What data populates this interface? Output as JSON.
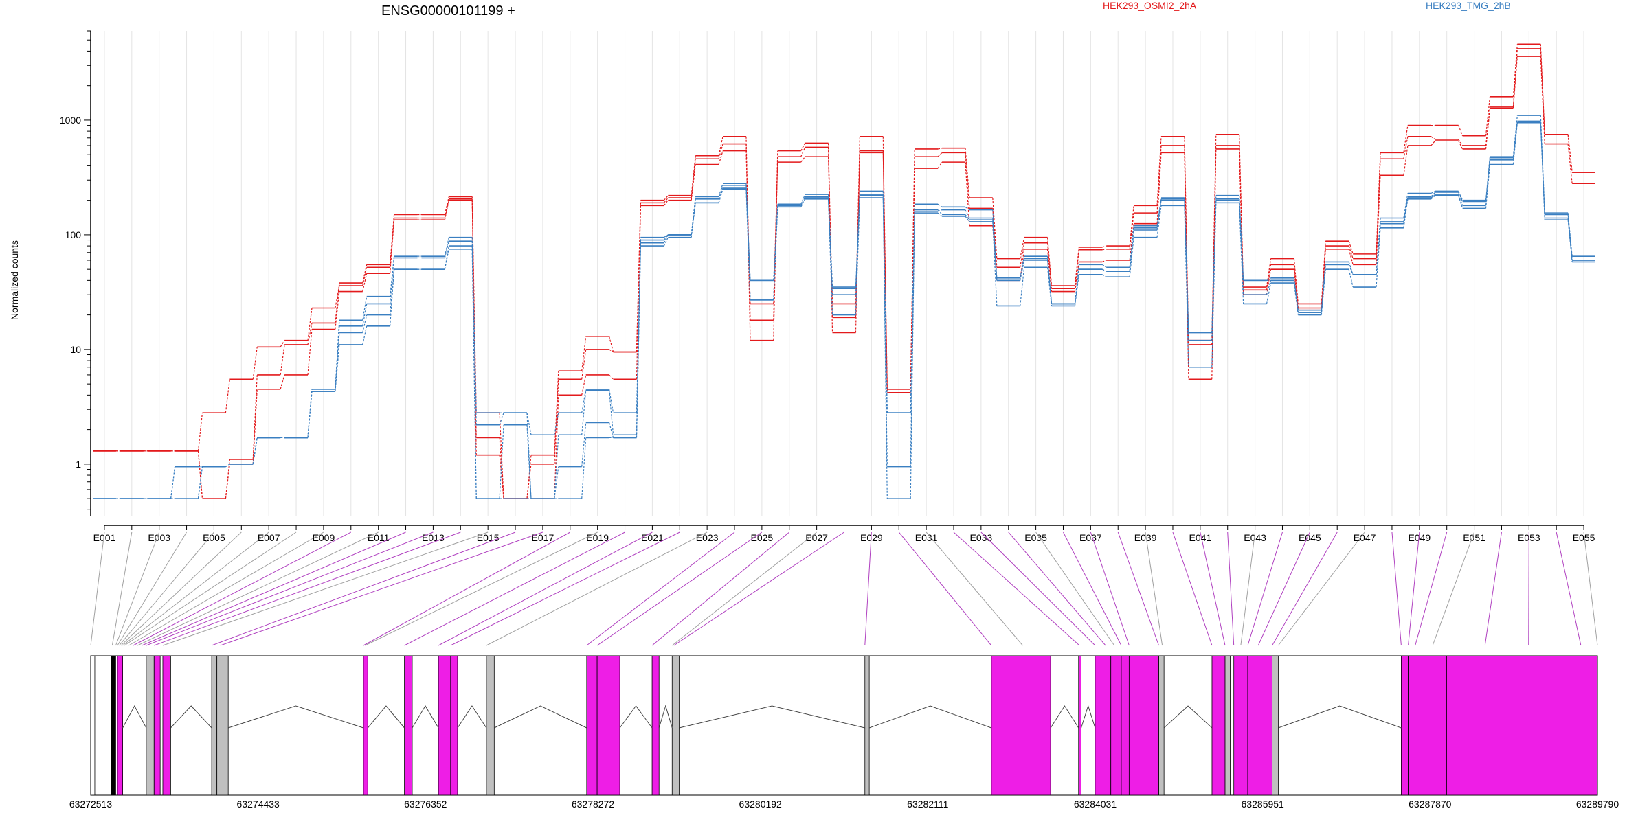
{
  "title": "ENSG00000101199 +",
  "colors": {
    "groupA": "#e31a1c",
    "groupB": "#3a7fc1",
    "exonCoding": "#ee1ee6",
    "exonNonCoding": "#c0c0c0",
    "link": "#a0a0a0",
    "linkColored": "#b040c0"
  },
  "chart_data": [
    {
      "type": "line",
      "title": "ENSG00000101199 +",
      "ylabel": "Normalized counts",
      "yscale": "log",
      "ylim": [
        0.35,
        6000
      ],
      "yticks": [
        1,
        10,
        100,
        1000
      ],
      "ytick_labels": [
        "1",
        "10",
        "100",
        "1000"
      ],
      "grid": "vertical",
      "legend": "top",
      "categories": [
        "E001",
        "E002",
        "E003",
        "E004",
        "E005",
        "E006",
        "E007",
        "E008",
        "E009",
        "E010",
        "E011",
        "E012",
        "E013",
        "E014",
        "E015",
        "E016",
        "E017",
        "E018",
        "E019",
        "E020",
        "E021",
        "E022",
        "E023",
        "E024",
        "E025",
        "E026",
        "E027",
        "E028",
        "E029",
        "E030",
        "E031",
        "E032",
        "E033",
        "E034",
        "E035",
        "E036",
        "E037",
        "E038",
        "E039",
        "E040",
        "E041",
        "E042",
        "E043",
        "E044",
        "E045",
        "E046",
        "E047",
        "E048",
        "E049",
        "E050",
        "E051",
        "E052",
        "E053",
        "E054",
        "E055"
      ],
      "xtick_labels": [
        "E001",
        "E003",
        "E005",
        "E007",
        "E009",
        "E011",
        "E013",
        "E015",
        "E017",
        "E019",
        "E021",
        "E023",
        "E025",
        "E027",
        "E029",
        "E031",
        "E033",
        "E035",
        "E037",
        "E039",
        "E041",
        "E043",
        "E045",
        "E047",
        "E049",
        "E051",
        "E053",
        "E055"
      ],
      "series": [
        {
          "name": "HEK293_OSMI2_2hA",
          "group": "A",
          "values": [
            1.3,
            1.3,
            1.3,
            1.3,
            0.5,
            1.1,
            6,
            11,
            17,
            38,
            55,
            150,
            150,
            215,
            1.7,
            0.5,
            1.2,
            6.5,
            13,
            9.5,
            200,
            220,
            490,
            720,
            18,
            540,
            630,
            19,
            720,
            4.5,
            560,
            570,
            210,
            62,
            95,
            36,
            78,
            80,
            180,
            720,
            12,
            750,
            35,
            62,
            25,
            88,
            68,
            520,
            900,
            900,
            730,
            1600,
            4600,
            750,
            350
          ]
        },
        {
          "name": "HEK293_OSMI2_2hA",
          "group": "A",
          "values": [
            1.3,
            1.3,
            1.3,
            1.3,
            2.8,
            5.5,
            10.5,
            12,
            23,
            36,
            52,
            140,
            140,
            205,
            1.2,
            0.5,
            1.0,
            5.5,
            10,
            9.5,
            190,
            210,
            460,
            620,
            12,
            480,
            580,
            14,
            540,
            4.5,
            480,
            520,
            170,
            52,
            85,
            34,
            74,
            75,
            155,
            600,
            5.5,
            600,
            33,
            55,
            23,
            80,
            62,
            460,
            720,
            680,
            600,
            1300,
            4200,
            750,
            350
          ]
        },
        {
          "name": "HEK293_OSMI2_2hA",
          "group": "A",
          "values": [
            1.3,
            1.3,
            1.3,
            1.3,
            0.5,
            1.0,
            4.5,
            6,
            15,
            32,
            46,
            135,
            135,
            200,
            2.8,
            0.5,
            0.5,
            4,
            6,
            5.5,
            180,
            200,
            410,
            540,
            25,
            430,
            480,
            25,
            520,
            4.2,
            380,
            430,
            120,
            40,
            75,
            32,
            58,
            60,
            125,
            520,
            11,
            560,
            30,
            50,
            22,
            75,
            55,
            330,
            600,
            660,
            560,
            1260,
            3600,
            620,
            280
          ]
        },
        {
          "name": "HEK293_TMG_2hB",
          "group": "B",
          "values": [
            0.5,
            0.5,
            0.5,
            0.5,
            0.95,
            1.0,
            1.7,
            1.7,
            4.5,
            18,
            29,
            65,
            65,
            95,
            2.8,
            2.8,
            1.8,
            2.8,
            4.5,
            2.8,
            95,
            100,
            215,
            280,
            40,
            185,
            225,
            35,
            240,
            2.8,
            185,
            175,
            165,
            42,
            65,
            25,
            55,
            52,
            120,
            210,
            14,
            220,
            40,
            42,
            22,
            58,
            45,
            140,
            230,
            240,
            200,
            480,
            1100,
            155,
            65
          ]
        },
        {
          "name": "HEK293_TMG_2hB",
          "group": "B",
          "values": [
            0.5,
            0.5,
            0.5,
            0.5,
            0.95,
            1.0,
            1.7,
            1.7,
            4.5,
            16,
            25,
            63,
            63,
            88,
            2.2,
            2.8,
            0.5,
            1.8,
            4.4,
            1.8,
            90,
            100,
            205,
            270,
            27,
            180,
            215,
            30,
            225,
            2.8,
            160,
            165,
            140,
            40,
            60,
            25,
            50,
            48,
            115,
            205,
            12,
            205,
            30,
            40,
            21,
            55,
            45,
            125,
            215,
            235,
            195,
            470,
            980,
            150,
            60
          ]
        },
        {
          "name": "HEK293_TMG_2hB",
          "group": "B",
          "values": [
            0.5,
            0.5,
            0.5,
            0.95,
            0.95,
            1.0,
            1.7,
            1.7,
            4.3,
            14,
            20,
            50,
            50,
            80,
            0.5,
            2.2,
            0.5,
            0.95,
            2.3,
            1.7,
            80,
            95,
            190,
            255,
            40,
            175,
            205,
            20,
            210,
            0.95,
            155,
            145,
            130,
            24,
            52,
            24,
            45,
            43,
            95,
            180,
            7,
            190,
            25,
            38,
            20,
            50,
            35,
            115,
            205,
            220,
            170,
            410,
            950,
            135,
            58
          ]
        },
        {
          "name": "HEK293_TMG_2hB",
          "group": "B",
          "values": [
            0.5,
            0.5,
            0.5,
            0.95,
            0.95,
            1.0,
            1.7,
            1.7,
            4.3,
            11,
            16,
            50,
            50,
            75,
            0.5,
            0.5,
            0.5,
            0.5,
            1.7,
            1.7,
            85,
            100,
            190,
            250,
            27,
            180,
            210,
            34,
            220,
            0.5,
            165,
            150,
            135,
            40,
            62,
            25,
            50,
            48,
            110,
            200,
            14,
            200,
            40,
            40,
            21,
            55,
            45,
            130,
            210,
            225,
            180,
            450,
            960,
            140,
            60
          ]
        }
      ],
      "legend_entries": [
        "HEK293_OSMI2_2hA",
        "HEK293_TMG_2hB"
      ]
    },
    {
      "type": "gene-model",
      "x_tick_labels": [
        "63272513",
        "63274433",
        "63276352",
        "63278272",
        "63280192",
        "63282111",
        "63284031",
        "63285951",
        "63287870",
        "63289790"
      ],
      "xlim": [
        63272513,
        63289790
      ]
    }
  ]
}
